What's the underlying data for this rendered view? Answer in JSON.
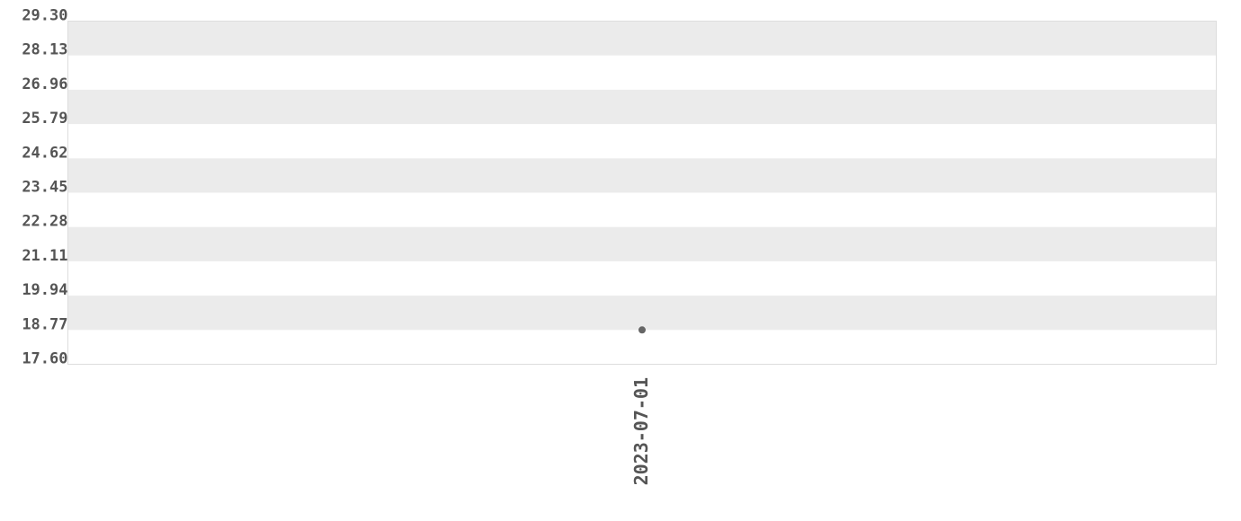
{
  "chart_data": {
    "type": "scatter",
    "title": "",
    "xlabel": "",
    "ylabel": "",
    "categories": [
      "2023-07-01"
    ],
    "series": [
      {
        "x": [
          "2023-07-01"
        ],
        "y": [
          18.77
        ]
      }
    ],
    "ylim": [
      17.6,
      29.3
    ],
    "yticks": [
      "17.60",
      "18.77",
      "19.94",
      "21.11",
      "22.28",
      "23.45",
      "24.62",
      "25.79",
      "26.96",
      "28.13",
      "29.30"
    ],
    "grid": "alternating horizontal bands",
    "colors": {
      "point": "#666666",
      "band": "#ebebeb",
      "border": "#dddddd",
      "text": "#555555"
    }
  }
}
